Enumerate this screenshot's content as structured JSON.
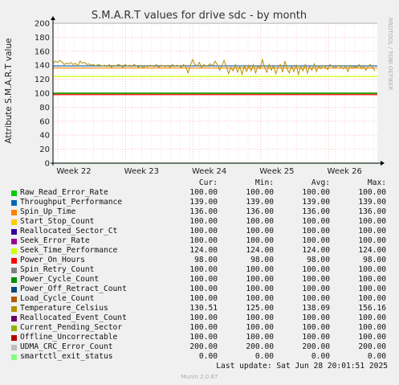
{
  "chart_data": {
    "type": "line",
    "title": "S.M.A.R.T values for drive sdc - by month",
    "ylabel": "Attribute S.M.A.R.T value",
    "ylim": [
      0,
      200
    ],
    "yticks": [
      0,
      20,
      40,
      60,
      80,
      100,
      120,
      140,
      160,
      180,
      200
    ],
    "xticks": [
      "Week 22",
      "Week 23",
      "Week 24",
      "Week 25",
      "Week 26"
    ],
    "grid": true,
    "series": [
      {
        "name": "Raw_Read_Error_Rate",
        "color": "#00cc00",
        "cur": "100.00",
        "min": "100.00",
        "avg": "100.00",
        "max": "100.00",
        "value": 100
      },
      {
        "name": "Throughput_Performance",
        "color": "#0066b3",
        "cur": "139.00",
        "min": "139.00",
        "avg": "139.00",
        "max": "139.00",
        "value": 139
      },
      {
        "name": "Spin_Up_Time",
        "color": "#ff8000",
        "cur": "136.00",
        "min": "136.00",
        "avg": "136.00",
        "max": "136.00",
        "value": 136
      },
      {
        "name": "Start_Stop_Count",
        "color": "#ffcc00",
        "cur": "100.00",
        "min": "100.00",
        "avg": "100.00",
        "max": "100.00",
        "value": 100
      },
      {
        "name": "Reallocated_Sector_Ct",
        "color": "#330099",
        "cur": "100.00",
        "min": "100.00",
        "avg": "100.00",
        "max": "100.00",
        "value": 100
      },
      {
        "name": "Seek_Error_Rate",
        "color": "#990099",
        "cur": "100.00",
        "min": "100.00",
        "avg": "100.00",
        "max": "100.00",
        "value": 100
      },
      {
        "name": "Seek_Time_Performance",
        "color": "#ccff00",
        "cur": "124.00",
        "min": "124.00",
        "avg": "124.00",
        "max": "124.00",
        "value": 124
      },
      {
        "name": "Power_On_Hours",
        "color": "#ff0000",
        "cur": "98.00",
        "min": "98.00",
        "avg": "98.00",
        "max": "98.00",
        "value": 98
      },
      {
        "name": "Spin_Retry_Count",
        "color": "#808080",
        "cur": "100.00",
        "min": "100.00",
        "avg": "100.00",
        "max": "100.00",
        "value": 100
      },
      {
        "name": "Power_Cycle_Count",
        "color": "#008f00",
        "cur": "100.00",
        "min": "100.00",
        "avg": "100.00",
        "max": "100.00",
        "value": 100
      },
      {
        "name": "Power_Off_Retract_Count",
        "color": "#00487d",
        "cur": "100.00",
        "min": "100.00",
        "avg": "100.00",
        "max": "100.00",
        "value": 100
      },
      {
        "name": "Load_Cycle_Count",
        "color": "#b35a00",
        "cur": "100.00",
        "min": "100.00",
        "avg": "100.00",
        "max": "100.00",
        "value": 100
      },
      {
        "name": "Temperature_Celsius",
        "color": "#b38f00",
        "cur": "130.51",
        "min": "125.00",
        "avg": "138.09",
        "max": "156.16",
        "value": null
      },
      {
        "name": "Reallocated_Event_Count",
        "color": "#6b006b",
        "cur": "100.00",
        "min": "100.00",
        "avg": "100.00",
        "max": "100.00",
        "value": 100
      },
      {
        "name": "Current_Pending_Sector",
        "color": "#8fb300",
        "cur": "100.00",
        "min": "100.00",
        "avg": "100.00",
        "max": "100.00",
        "value": 100
      },
      {
        "name": "Offline_Uncorrectable",
        "color": "#b30000",
        "cur": "100.00",
        "min": "100.00",
        "avg": "100.00",
        "max": "100.00",
        "value": 100
      },
      {
        "name": "UDMA_CRC_Error_Count",
        "color": "#bebebe",
        "cur": "200.00",
        "min": "200.00",
        "avg": "200.00",
        "max": "200.00",
        "value": 200
      },
      {
        "name": "smartctl_exit_status",
        "color": "#80ff80",
        "cur": "0.00",
        "min": "0.00",
        "avg": "0.00",
        "max": "0.00",
        "value": 0
      }
    ],
    "temperature_values": [
      143,
      146,
      144,
      147,
      145,
      141,
      143,
      142,
      144,
      141,
      143,
      139,
      146,
      143,
      144,
      141,
      142,
      140,
      141,
      139,
      141,
      140,
      139,
      140,
      138,
      141,
      137,
      140,
      139,
      141,
      140,
      137,
      141,
      139,
      140,
      138,
      141,
      139,
      137,
      140,
      136,
      139,
      138,
      140,
      139,
      138,
      141,
      137,
      140,
      139,
      138,
      140,
      137,
      141,
      138,
      140,
      139,
      137,
      141,
      138,
      129,
      140,
      148,
      141,
      139,
      144,
      137,
      141,
      138,
      140,
      142,
      139,
      146,
      141,
      133,
      139,
      147,
      138,
      128,
      137,
      132,
      141,
      130,
      138,
      127,
      139,
      131,
      140,
      132,
      141,
      129,
      139,
      135,
      148,
      137,
      130,
      141,
      133,
      139,
      128,
      137,
      141,
      130,
      146,
      135,
      129,
      139,
      131,
      140,
      127,
      138,
      132,
      141,
      129,
      138,
      133,
      142,
      131,
      139,
      135,
      140,
      137,
      134,
      141,
      139,
      136,
      138,
      140,
      137,
      135,
      139,
      131,
      140,
      136,
      138,
      137,
      141,
      135,
      139,
      133,
      138,
      141,
      136,
      132
    ]
  },
  "legend_headers": {
    "cur": "Cur:",
    "min": "Min:",
    "avg": "Avg:",
    "max": "Max:"
  },
  "footer": {
    "last_update": "Last update: Sat Jun 28 20:01:51 2025",
    "munin": "Munin 2.0.67"
  },
  "watermark": "RRDTOOL / TOBI OETIKER"
}
